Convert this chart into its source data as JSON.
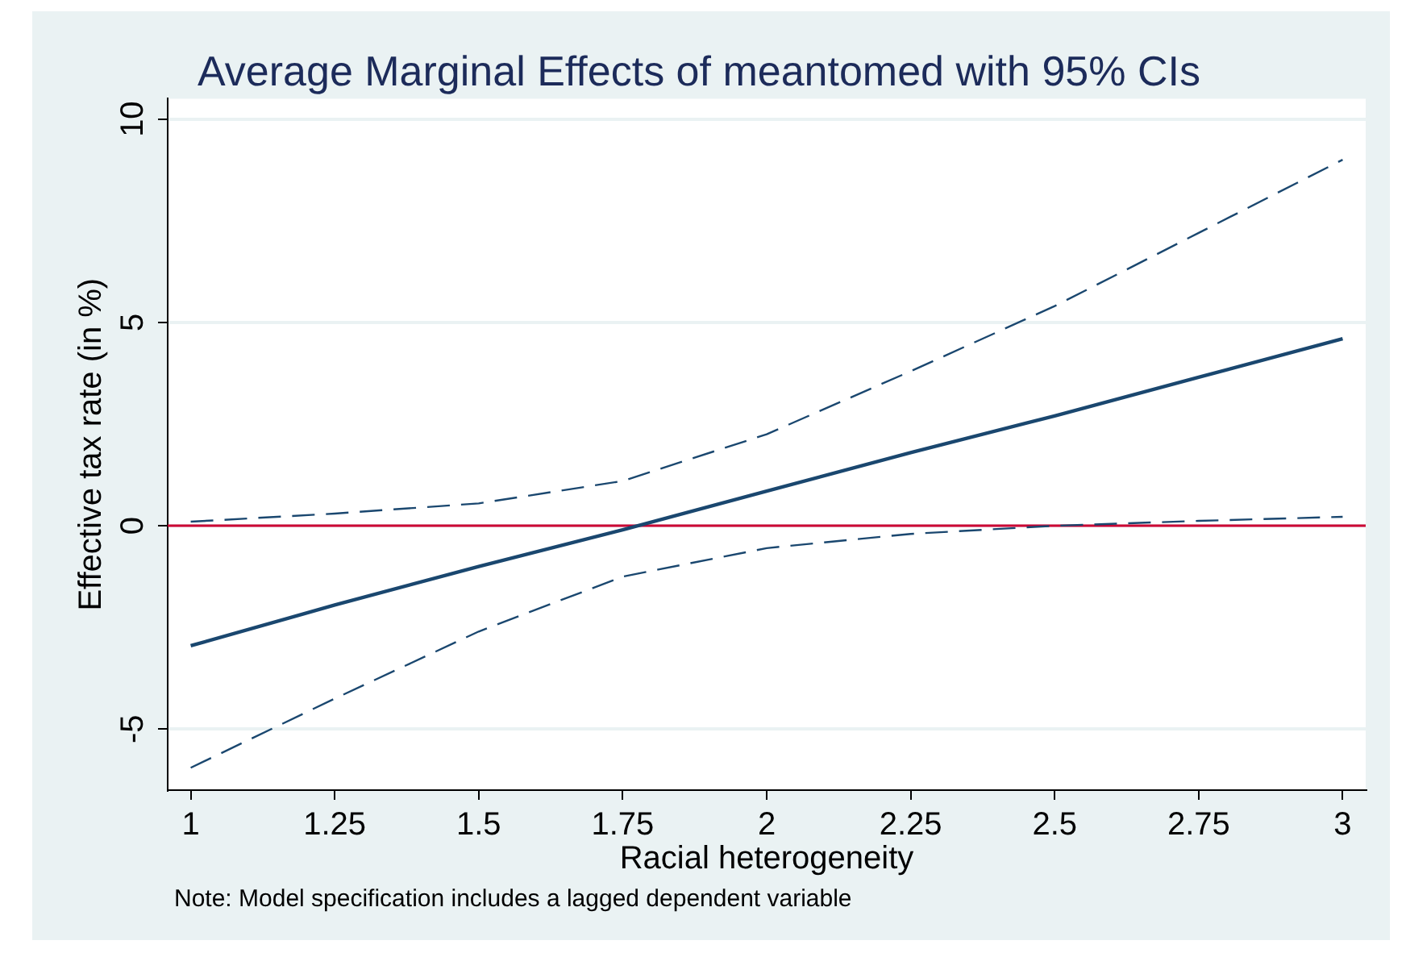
{
  "chart_data": {
    "type": "line",
    "title": "Average Marginal Effects of meantomed with 95% CIs",
    "xlabel": "Racial heterogeneity",
    "ylabel": "Effective tax rate (in %)",
    "annotations": [
      "Note: Model specification includes a lagged dependent variable"
    ],
    "x": [
      1,
      1.25,
      1.5,
      1.75,
      2,
      2.25,
      2.5,
      2.75,
      3
    ],
    "series": [
      {
        "color": "#1a476f",
        "line_style": "solid",
        "values": [
          -2.95,
          -1.95,
          -1.0,
          -0.1,
          0.85,
          1.8,
          2.7,
          3.65,
          4.6
        ]
      },
      {
        "color": "#1a476f",
        "line_style": "dashed",
        "values": [
          0.1,
          0.3,
          0.55,
          1.1,
          2.25,
          3.8,
          5.4,
          7.2,
          9.0
        ]
      },
      {
        "color": "#1a476f",
        "line_style": "dashed",
        "values": [
          -5.95,
          -4.25,
          -2.6,
          -1.25,
          -0.55,
          -0.2,
          0.0,
          0.12,
          0.22
        ]
      }
    ],
    "xlim": [
      0.96,
      3.04
    ],
    "ylim": [
      -6.5,
      10.5
    ],
    "xticks": [
      1,
      1.25,
      1.5,
      1.75,
      2,
      2.25,
      2.5,
      2.75,
      3
    ],
    "yticks": [
      -5,
      0,
      5,
      10
    ],
    "ref_lines": [
      {
        "axis": "y",
        "value": 0,
        "color": "#cc0033"
      }
    ],
    "grid": "y",
    "marker": "none"
  }
}
